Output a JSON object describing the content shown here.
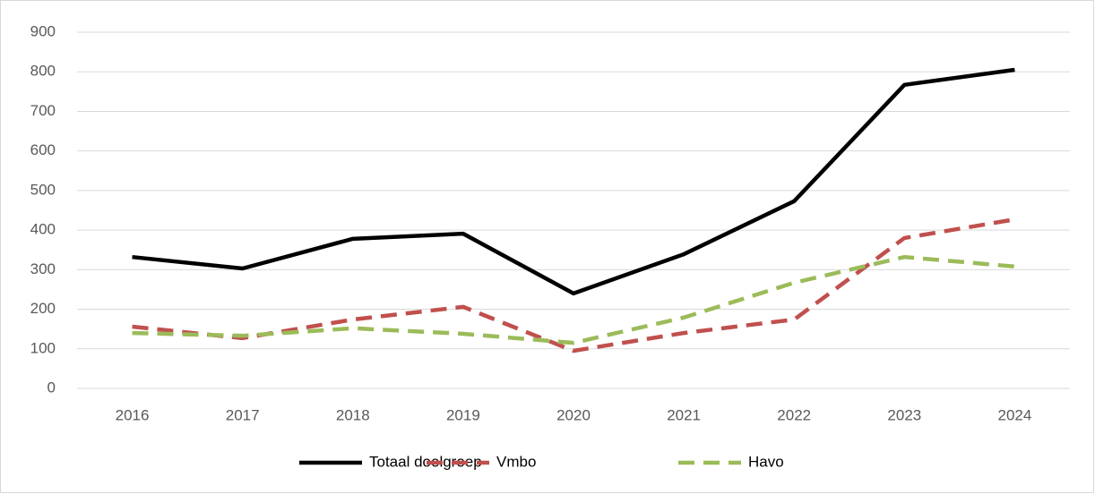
{
  "chart_data": {
    "type": "line",
    "categories": [
      "2016",
      "2017",
      "2018",
      "2019",
      "2020",
      "2021",
      "2022",
      "2023",
      "2024"
    ],
    "series": [
      {
        "name": "Totaal doelgroep",
        "color": "#000000",
        "dashed": false,
        "values": [
          332,
          303,
          378,
          391,
          240,
          339,
          473,
          767,
          805
        ]
      },
      {
        "name": "Vmbo",
        "color": "#c0504d",
        "dashed": true,
        "values": [
          156,
          127,
          174,
          206,
          95,
          140,
          174,
          380,
          427
        ]
      },
      {
        "name": "Havo",
        "color": "#9bbb59",
        "dashed": true,
        "values": [
          140,
          133,
          152,
          138,
          115,
          179,
          267,
          332,
          308
        ]
      }
    ],
    "ylim": [
      0,
      900
    ],
    "yticks": [
      0,
      100,
      200,
      300,
      400,
      500,
      600,
      700,
      800,
      900
    ],
    "grid": true,
    "legend": "bottom"
  }
}
